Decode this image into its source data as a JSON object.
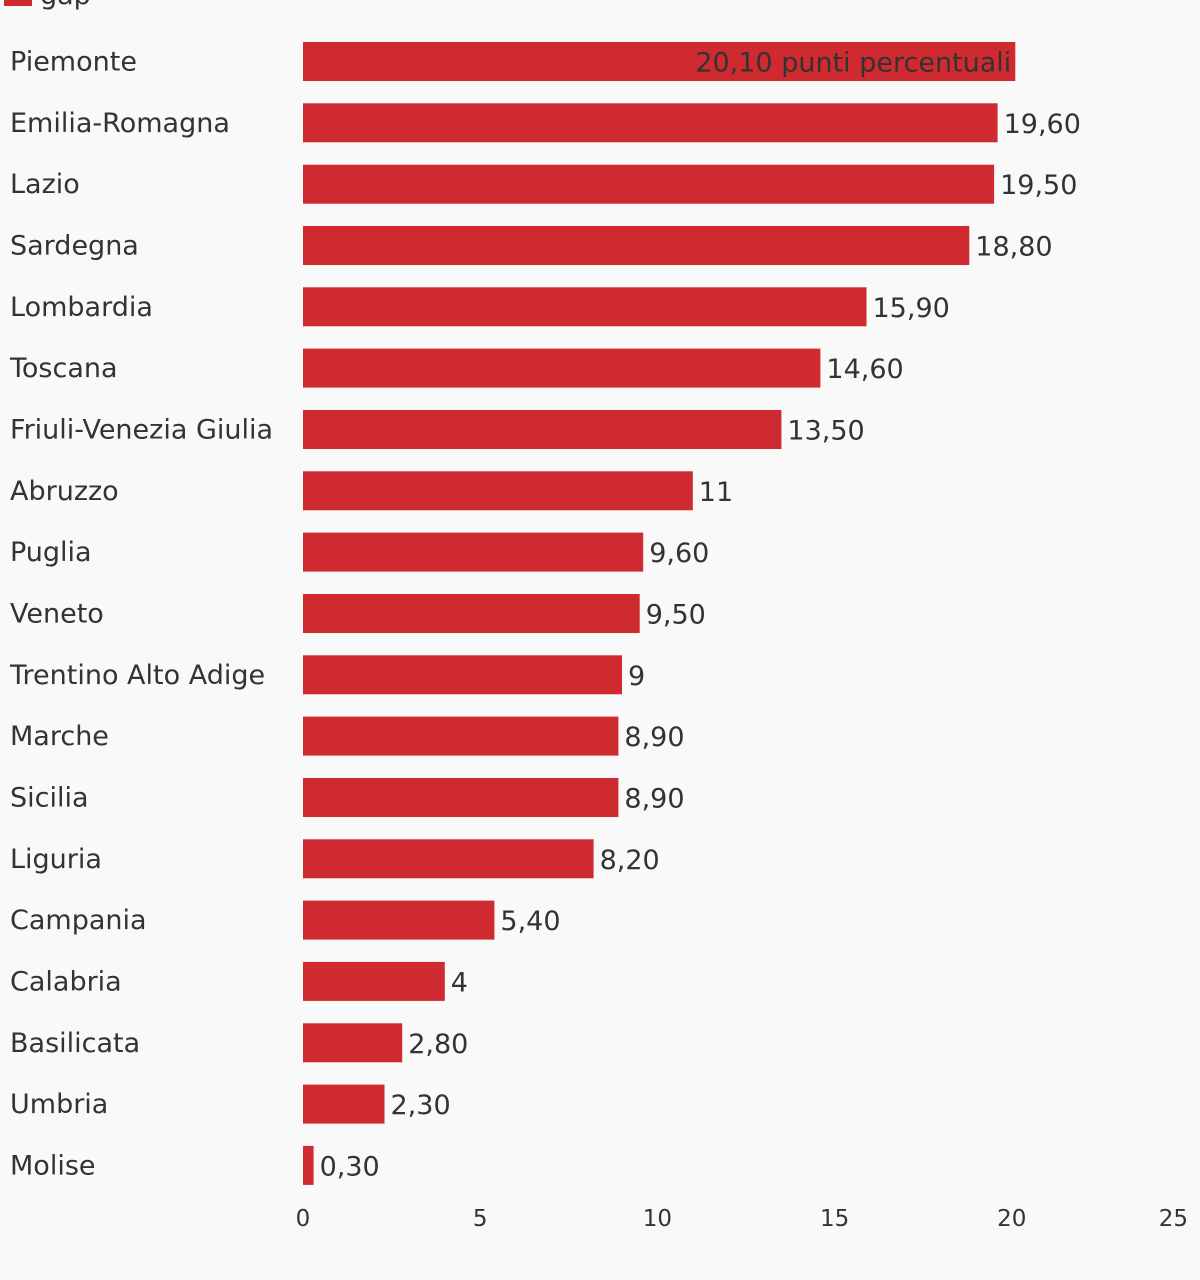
{
  "chart_data": {
    "type": "bar",
    "orientation": "horizontal",
    "legend": {
      "position": "top-left",
      "entries": [
        "gap"
      ]
    },
    "categories": [
      "Piemonte",
      "Emilia-Romagna",
      "Lazio",
      "Sardegna",
      "Lombardia",
      "Toscana",
      "Friuli-Venezia Giulia",
      "Abruzzo",
      "Puglia",
      "Veneto",
      "Trentino Alto Adige",
      "Marche",
      "Sicilia",
      "Liguria",
      "Campania",
      "Calabria",
      "Basilicata",
      "Umbria",
      "Molise"
    ],
    "series": [
      {
        "name": "gap",
        "color": "#cf2a30",
        "values": [
          20.1,
          19.6,
          19.5,
          18.8,
          15.9,
          14.6,
          13.5,
          11,
          9.6,
          9.5,
          9,
          8.9,
          8.9,
          8.2,
          5.4,
          4,
          2.8,
          2.3,
          0.3
        ]
      }
    ],
    "data_labels": [
      "20,10 punti percentuali",
      "19,60",
      "19,50",
      "18,80",
      "15,90",
      "14,60",
      "13,50",
      "11",
      "9,60",
      "9,50",
      "9",
      "8,90",
      "8,90",
      "8,20",
      "5,40",
      "4",
      "2,80",
      "2,30",
      "0,30"
    ],
    "xlim": [
      0,
      25
    ],
    "xticks": [
      "0",
      "5",
      "10",
      "15",
      "20",
      "25"
    ],
    "grid": false,
    "title": "",
    "xlabel": "",
    "ylabel": ""
  }
}
